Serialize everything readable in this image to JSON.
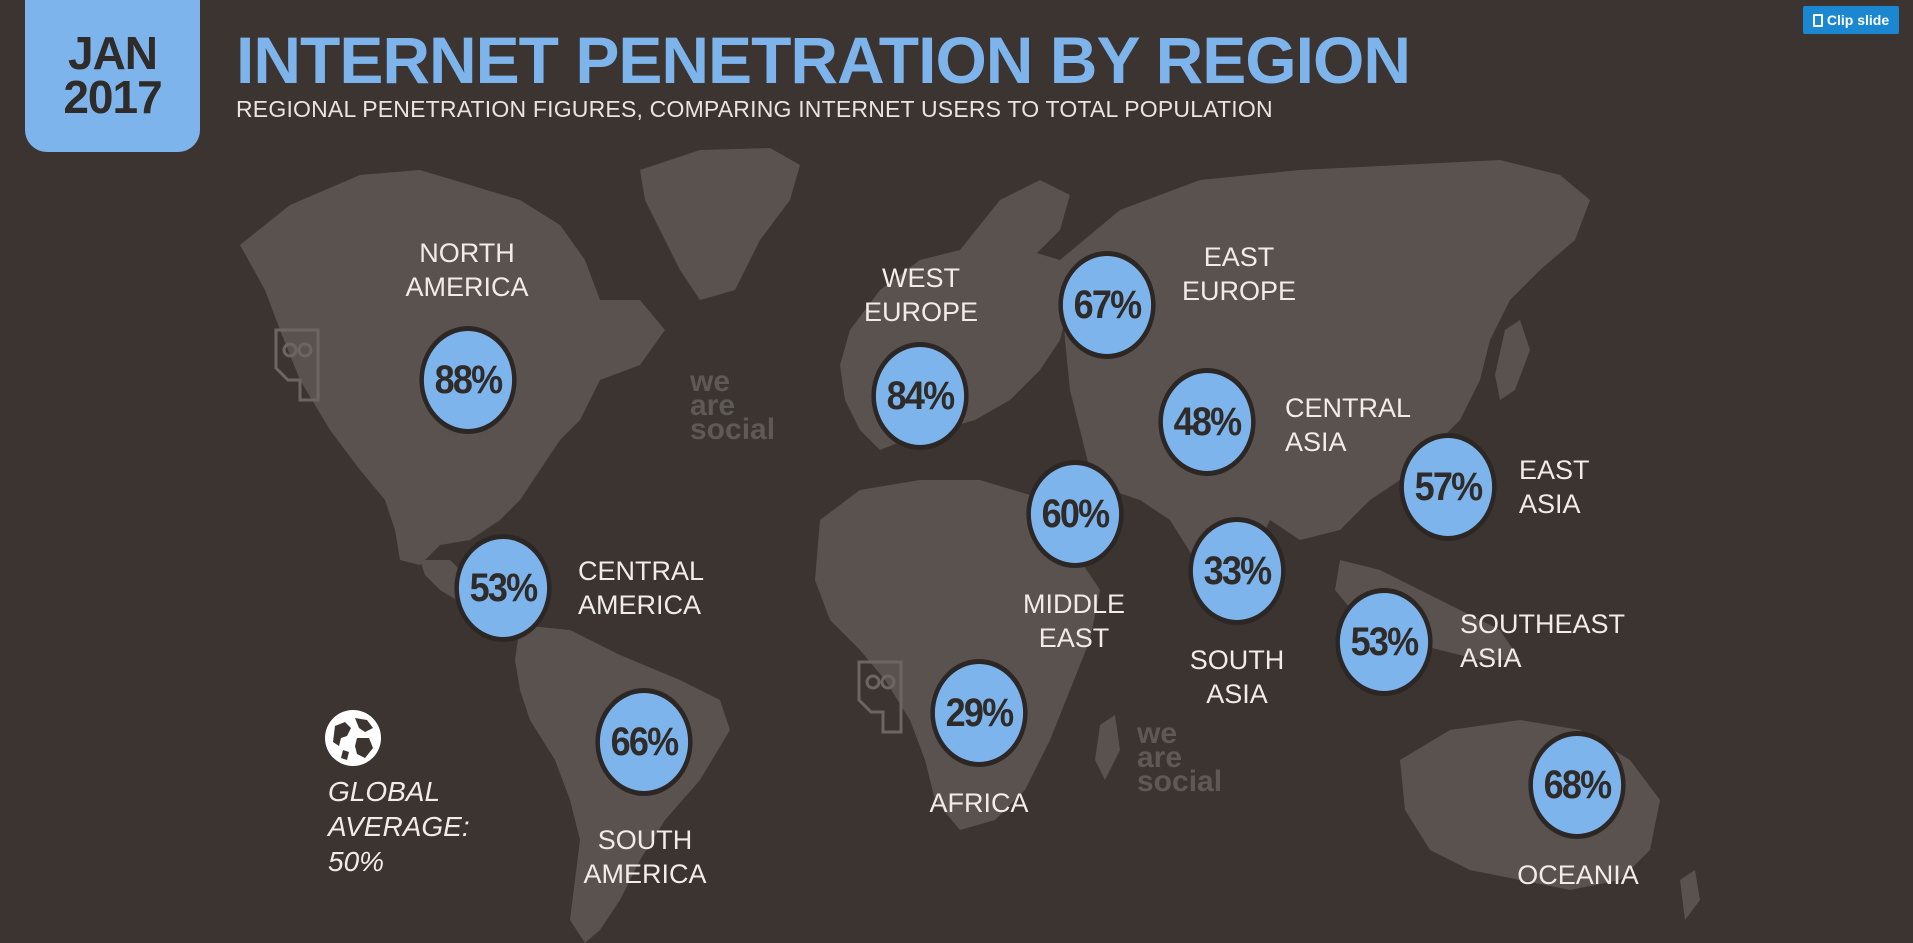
{
  "badge": {
    "month": "JAN",
    "year": "2017"
  },
  "title": "INTERNET PENETRATION BY REGION",
  "subtitle": "REGIONAL PENETRATION FIGURES, COMPARING INTERNET USERS TO TOTAL POPULATION",
  "clip_button": {
    "label": "Clip slide"
  },
  "watermark": {
    "line1": "we",
    "line2": "are",
    "line3": "social"
  },
  "global": {
    "line1": "GLOBAL",
    "line2": "AVERAGE:",
    "value": "50%"
  },
  "regions": [
    {
      "id": "north-america",
      "value": "88%",
      "name1": "NORTH",
      "name2": "AMERICA"
    },
    {
      "id": "central-america",
      "value": "53%",
      "name1": "CENTRAL",
      "name2": "AMERICA"
    },
    {
      "id": "south-america",
      "value": "66%",
      "name1": "SOUTH",
      "name2": "AMERICA"
    },
    {
      "id": "west-europe",
      "value": "84%",
      "name1": "WEST",
      "name2": "EUROPE"
    },
    {
      "id": "east-europe",
      "value": "67%",
      "name1": "EAST",
      "name2": "EUROPE"
    },
    {
      "id": "central-asia",
      "value": "48%",
      "name1": "CENTRAL",
      "name2": "ASIA"
    },
    {
      "id": "middle-east",
      "value": "60%",
      "name1": "MIDDLE",
      "name2": "EAST"
    },
    {
      "id": "south-asia",
      "value": "33%",
      "name1": "SOUTH",
      "name2": "ASIA"
    },
    {
      "id": "east-asia",
      "value": "57%",
      "name1": "EAST",
      "name2": "ASIA"
    },
    {
      "id": "southeast-asia",
      "value": "53%",
      "name1": "SOUTHEAST",
      "name2": "ASIA"
    },
    {
      "id": "africa",
      "value": "29%",
      "name1": "AFRICA",
      "name2": ""
    },
    {
      "id": "oceania",
      "value": "68%",
      "name1": "OCEANIA",
      "name2": ""
    }
  ],
  "colors": {
    "background": "#3b3431",
    "land": "#5a524e",
    "accent": "#7eb4ec",
    "button": "#1a87d0"
  }
}
